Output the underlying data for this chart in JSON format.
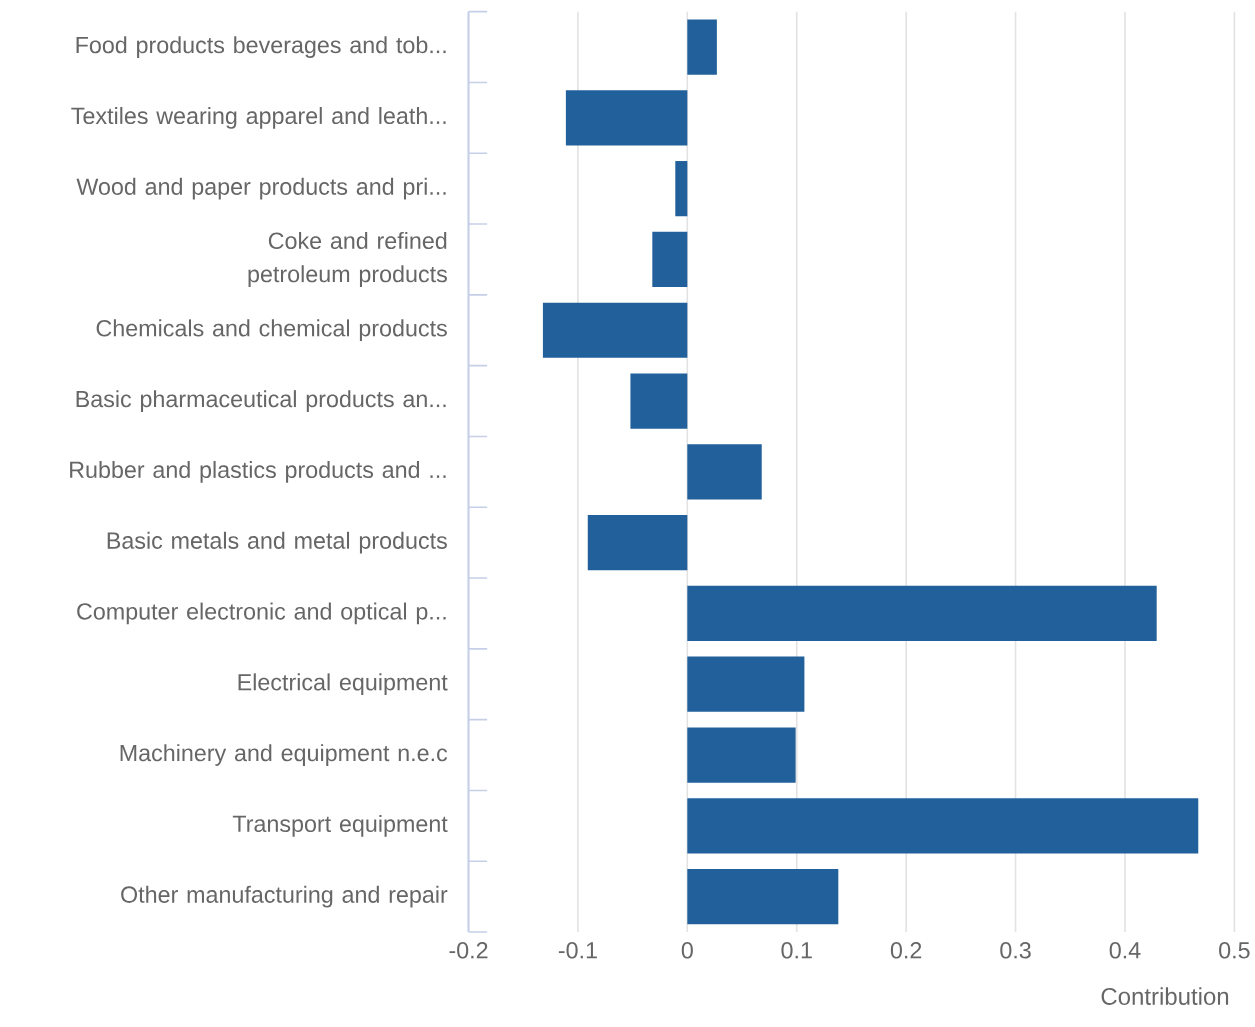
{
  "chart_data": {
    "type": "bar",
    "orientation": "horizontal",
    "xlabel": "Contribution",
    "categories": [
      "Food products beverages and tob...",
      "Textiles wearing apparel and leath...",
      "Wood and paper products and pri...",
      "Coke and refined petroleum products",
      "Chemicals and chemical products",
      "Basic pharmaceutical products an...",
      "Rubber and plastics products and ...",
      "Basic metals and metal products",
      "Computer electronic and optical p...",
      "Electrical equipment",
      "Machinery and equipment n.e.c",
      "Transport equipment",
      "Other manufacturing and repair"
    ],
    "values": [
      0.027,
      -0.111,
      -0.011,
      -0.032,
      -0.132,
      -0.052,
      0.068,
      -0.091,
      0.429,
      0.107,
      0.099,
      0.467,
      0.138
    ],
    "color": "#21609a",
    "xlim": [
      -0.2,
      0.5
    ],
    "xticks": [
      -0.2,
      -0.1,
      0,
      0.1,
      0.2,
      0.3,
      0.4,
      0.5
    ],
    "grid": "x"
  }
}
